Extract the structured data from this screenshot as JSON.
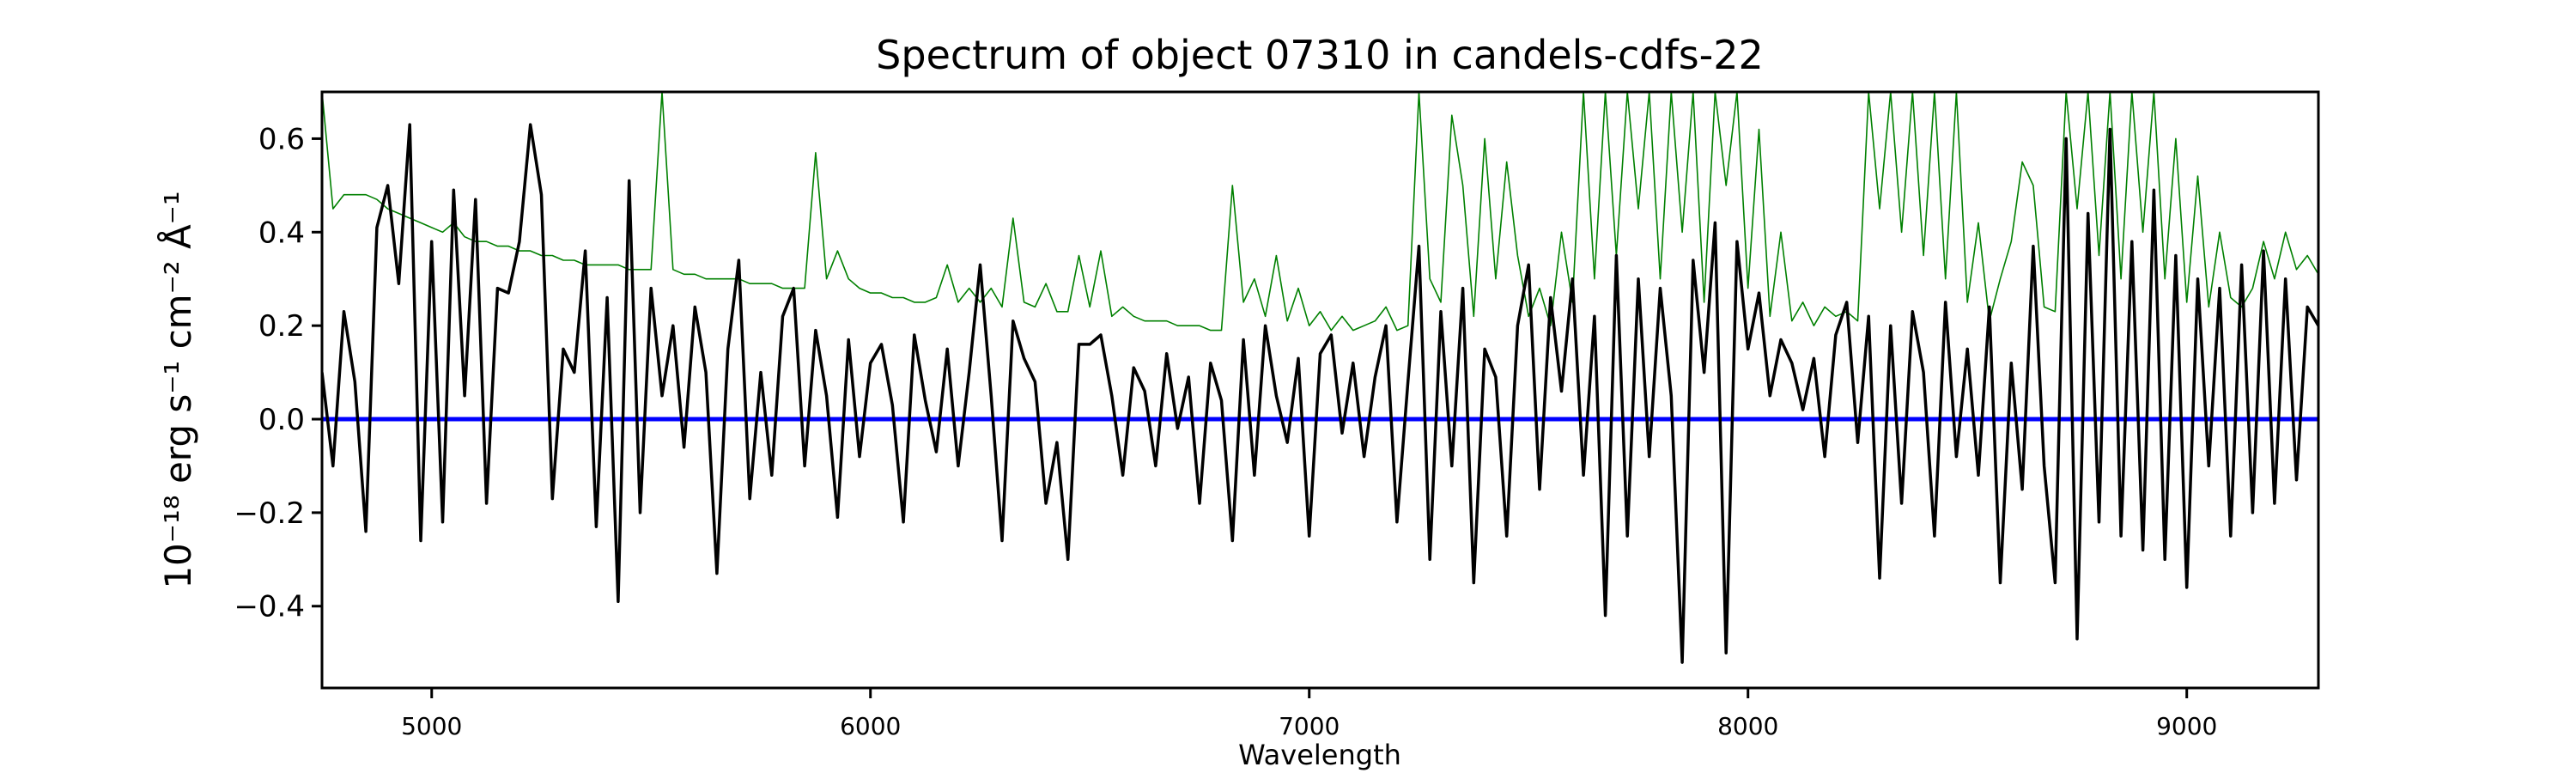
{
  "chart_data": {
    "type": "line",
    "title": "Spectrum of object 07310 in candels-cdfs-22",
    "xlabel": "Wavelength",
    "ylabel": "10⁻¹⁸ erg s⁻¹ cm⁻² Å⁻¹",
    "xlim": [
      4750,
      9300
    ],
    "ylim": [
      -0.575,
      0.7
    ],
    "xticks": [
      5000,
      6000,
      7000,
      8000,
      9000
    ],
    "xtick_labels": [
      "5000",
      "6000",
      "7000",
      "8000",
      "9000"
    ],
    "yticks": [
      -0.4,
      -0.2,
      0.0,
      0.2,
      0.4,
      0.6
    ],
    "ytick_labels": [
      "−0.4",
      "−0.2",
      "0.0",
      "0.2",
      "0.4",
      "0.6"
    ],
    "grid": false,
    "x": {
      "start": 4750,
      "step": 25,
      "count": 183
    },
    "series": [
      {
        "role": "error",
        "color": "#008000",
        "values": [
          0.7,
          0.45,
          0.48,
          0.48,
          0.48,
          0.47,
          0.45,
          0.44,
          0.43,
          0.42,
          0.41,
          0.4,
          0.42,
          0.39,
          0.38,
          0.38,
          0.37,
          0.37,
          0.36,
          0.36,
          0.35,
          0.35,
          0.34,
          0.34,
          0.33,
          0.33,
          0.33,
          0.33,
          0.32,
          0.32,
          0.32,
          0.7,
          0.32,
          0.31,
          0.31,
          0.3,
          0.3,
          0.3,
          0.3,
          0.29,
          0.29,
          0.29,
          0.28,
          0.28,
          0.28,
          0.57,
          0.3,
          0.36,
          0.3,
          0.28,
          0.27,
          0.27,
          0.26,
          0.26,
          0.25,
          0.25,
          0.26,
          0.33,
          0.25,
          0.28,
          0.25,
          0.28,
          0.24,
          0.43,
          0.25,
          0.24,
          0.29,
          0.23,
          0.23,
          0.35,
          0.24,
          0.36,
          0.22,
          0.24,
          0.22,
          0.21,
          0.21,
          0.21,
          0.2,
          0.2,
          0.2,
          0.19,
          0.19,
          0.5,
          0.25,
          0.3,
          0.22,
          0.35,
          0.21,
          0.28,
          0.2,
          0.23,
          0.19,
          0.22,
          0.19,
          0.2,
          0.21,
          0.24,
          0.19,
          0.2,
          0.7,
          0.3,
          0.25,
          0.65,
          0.5,
          0.22,
          0.6,
          0.3,
          0.55,
          0.35,
          0.22,
          0.28,
          0.2,
          0.4,
          0.25,
          0.7,
          0.3,
          0.7,
          0.35,
          0.7,
          0.45,
          0.7,
          0.3,
          0.7,
          0.4,
          0.7,
          0.25,
          0.7,
          0.5,
          0.7,
          0.28,
          0.62,
          0.22,
          0.4,
          0.21,
          0.25,
          0.2,
          0.24,
          0.22,
          0.23,
          0.21,
          0.7,
          0.45,
          0.7,
          0.4,
          0.7,
          0.35,
          0.7,
          0.3,
          0.7,
          0.25,
          0.42,
          0.21,
          0.3,
          0.38,
          0.55,
          0.5,
          0.24,
          0.23,
          0.7,
          0.45,
          0.7,
          0.35,
          0.7,
          0.3,
          0.7,
          0.4,
          0.7,
          0.3,
          0.6,
          0.25,
          0.52,
          0.24,
          0.4,
          0.26,
          0.24,
          0.28,
          0.38,
          0.3,
          0.4,
          0.32,
          0.35,
          0.31
        ]
      },
      {
        "role": "model",
        "color": "#0000ff",
        "constant": 0.0
      },
      {
        "role": "flux",
        "color": "#000000",
        "values": [
          0.1,
          -0.1,
          0.23,
          0.08,
          -0.24,
          0.41,
          0.5,
          0.29,
          0.63,
          -0.26,
          0.38,
          -0.22,
          0.49,
          0.05,
          0.47,
          -0.18,
          0.28,
          0.27,
          0.38,
          0.63,
          0.48,
          -0.17,
          0.15,
          0.1,
          0.36,
          -0.23,
          0.26,
          -0.39,
          0.51,
          -0.2,
          0.28,
          0.05,
          0.2,
          -0.06,
          0.24,
          0.1,
          -0.33,
          0.15,
          0.34,
          -0.17,
          0.1,
          -0.12,
          0.22,
          0.28,
          -0.1,
          0.19,
          0.05,
          -0.21,
          0.17,
          -0.08,
          0.12,
          0.16,
          0.03,
          -0.22,
          0.18,
          0.04,
          -0.07,
          0.15,
          -0.1,
          0.1,
          0.33,
          0.05,
          -0.26,
          0.21,
          0.13,
          0.08,
          -0.18,
          -0.05,
          -0.3,
          0.16,
          0.16,
          0.18,
          0.05,
          -0.12,
          0.11,
          0.06,
          -0.1,
          0.14,
          -0.02,
          0.09,
          -0.18,
          0.12,
          0.04,
          -0.26,
          0.17,
          -0.12,
          0.2,
          0.05,
          -0.05,
          0.13,
          -0.25,
          0.14,
          0.18,
          -0.03,
          0.12,
          -0.08,
          0.09,
          0.2,
          -0.22,
          0.08,
          0.37,
          -0.3,
          0.23,
          -0.1,
          0.28,
          -0.35,
          0.15,
          0.09,
          -0.25,
          0.2,
          0.33,
          -0.15,
          0.26,
          0.06,
          0.3,
          -0.12,
          0.22,
          -0.42,
          0.35,
          -0.25,
          0.3,
          -0.08,
          0.28,
          0.05,
          -0.52,
          0.34,
          0.1,
          0.42,
          -0.5,
          0.38,
          0.15,
          0.27,
          0.05,
          0.17,
          0.12,
          0.02,
          0.13,
          -0.08,
          0.18,
          0.25,
          -0.05,
          0.22,
          -0.34,
          0.2,
          -0.18,
          0.23,
          0.1,
          -0.25,
          0.25,
          -0.08,
          0.15,
          -0.12,
          0.24,
          -0.35,
          0.12,
          -0.15,
          0.37,
          -0.1,
          -0.35,
          0.6,
          -0.47,
          0.44,
          -0.22,
          0.62,
          -0.25,
          0.38,
          -0.28,
          0.49,
          -0.3,
          0.35,
          -0.36,
          0.3,
          -0.1,
          0.28,
          -0.25,
          0.33,
          -0.2,
          0.36,
          -0.18,
          0.3,
          -0.13,
          0.24,
          0.2
        ]
      }
    ]
  }
}
